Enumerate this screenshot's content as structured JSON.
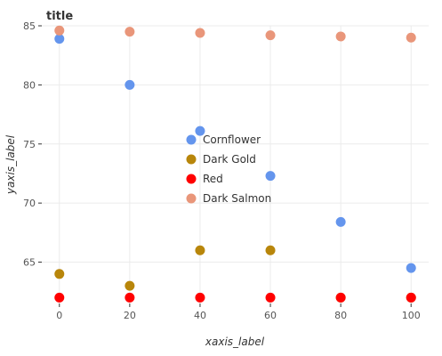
{
  "chart_data": {
    "type": "scatter",
    "title": "title",
    "xlabel": "xaxis_label",
    "ylabel": "yaxis_label",
    "x": [
      0,
      20,
      40,
      60,
      80,
      100
    ],
    "xlim": [
      -5,
      105
    ],
    "ylim": [
      61.5,
      85
    ],
    "x_ticks": [
      "0",
      "20",
      "40",
      "60",
      "80",
      "100"
    ],
    "y_ticks": [
      "65",
      "70",
      "75",
      "80",
      "85"
    ],
    "grid": true,
    "legend_position": "center-right",
    "series": [
      {
        "name": "Cornflower",
        "color": "#6495ED",
        "values": [
          83.9,
          80.0,
          76.1,
          72.3,
          68.4,
          64.5
        ]
      },
      {
        "name": "Dark Gold",
        "color": "#B8860B",
        "values": [
          64.0,
          63.0,
          66.0,
          66.0,
          62.0,
          62.0
        ]
      },
      {
        "name": "Red",
        "color": "#FF0000",
        "values": [
          62.0,
          62.0,
          62.0,
          62.0,
          62.0,
          62.0
        ]
      },
      {
        "name": "Dark Salmon",
        "color": "#E9967A",
        "values": [
          84.6,
          84.5,
          84.4,
          84.2,
          84.1,
          84.0
        ]
      }
    ]
  }
}
